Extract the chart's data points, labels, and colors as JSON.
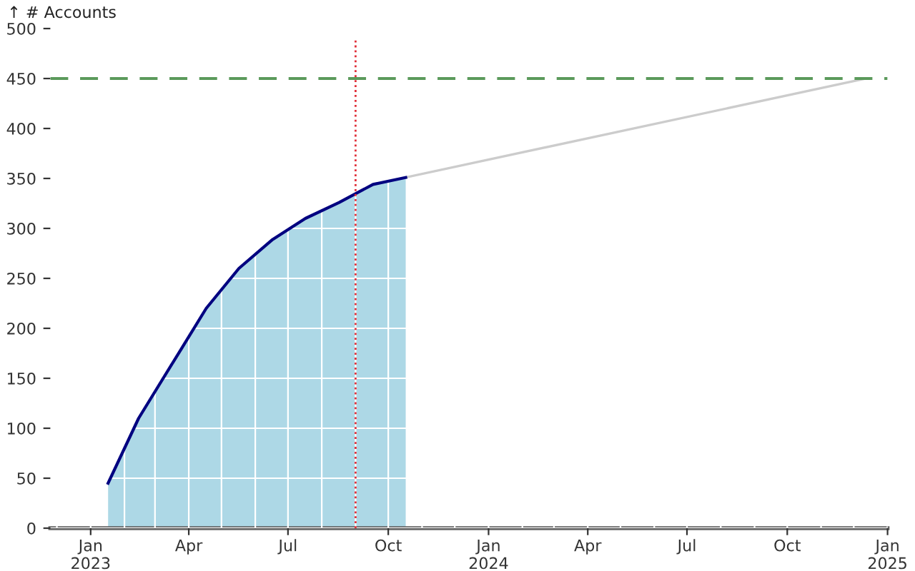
{
  "chart_data": {
    "type": "area",
    "ylabel": "↑ # Accounts",
    "series": [
      {
        "color": "#add8e6",
        "x": [
          "2023-01-17",
          "2023-02-14",
          "2023-03-17",
          "2023-04-17",
          "2023-05-17",
          "2023-06-17",
          "2023-07-17",
          "2023-08-17",
          "2023-09-17",
          "2023-10-17"
        ],
        "values": [
          45,
          110,
          165,
          220,
          260,
          289,
          310,
          326,
          344,
          351
        ]
      },
      {
        "type": "line",
        "color": "#cccccc",
        "x": [
          "2023-10-17",
          "2024-12-12"
        ],
        "values": [
          351,
          450
        ]
      }
    ],
    "xlim": [
      "2022-11-25",
      "2025-01-01"
    ],
    "xticks": [
      {
        "value": "2023-01-01",
        "label": "Jan\n2023"
      },
      {
        "value": "2023-04-01",
        "label": "Apr"
      },
      {
        "value": "2023-07-01",
        "label": "Jul"
      },
      {
        "value": "2023-10-01",
        "label": "Oct"
      },
      {
        "value": "2024-01-01",
        "label": "Jan\n2024"
      },
      {
        "value": "2024-04-01",
        "label": "Apr"
      },
      {
        "value": "2024-07-01",
        "label": "Jul"
      },
      {
        "value": "2024-10-01",
        "label": "Oct"
      },
      {
        "value": "2025-01-01",
        "label": "Jan\n2025"
      }
    ],
    "ylim": [
      0,
      500
    ],
    "yticks": [
      0,
      50,
      100,
      150,
      200,
      250,
      300,
      350,
      400,
      450,
      500
    ],
    "grid": true,
    "ref_lines": [
      {
        "axis": "y",
        "value": 450,
        "color": "#5b9a5b",
        "line_style": "dashed"
      },
      {
        "axis": "x",
        "value": "2023-09-01",
        "color": "#e0303a",
        "line_style": "dotted"
      }
    ]
  }
}
